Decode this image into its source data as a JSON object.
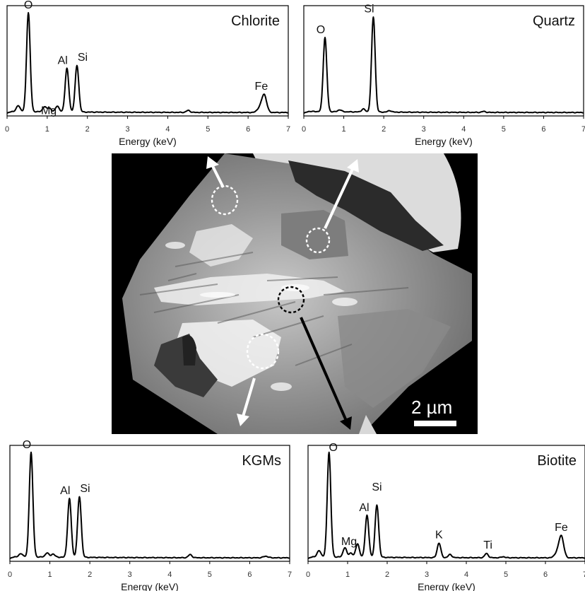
{
  "chart_data": [
    {
      "type": "line",
      "title": "Chlorite",
      "xlabel": "Energy (keV)",
      "ylabel": "",
      "xlim": [
        0,
        7
      ],
      "ylim": [
        0,
        100
      ],
      "x_ticks": [
        "0",
        "1",
        "2",
        "3",
        "4",
        "5",
        "6",
        "7"
      ],
      "peaks": [
        {
          "label": "O",
          "x": 0.53,
          "y": 100
        },
        {
          "label": "Mg",
          "x": 1.25,
          "y": 6
        },
        {
          "label": "Al",
          "x": 1.49,
          "y": 44
        },
        {
          "label": "Si",
          "x": 1.74,
          "y": 47
        },
        {
          "label": "Fe",
          "x": 6.4,
          "y": 18
        }
      ],
      "minor_peaks": [
        {
          "x": 0.28,
          "y": 6
        },
        {
          "x": 0.93,
          "y": 5
        },
        {
          "x": 1.05,
          "y": 4
        },
        {
          "x": 4.51,
          "y": 2
        },
        {
          "x": 6.28,
          "y": 4
        }
      ]
    },
    {
      "type": "line",
      "title": "Quartz",
      "xlabel": "Energy (keV)",
      "ylabel": "",
      "xlim": [
        0,
        7
      ],
      "ylim": [
        0,
        100
      ],
      "x_ticks": [
        "0",
        "1",
        "2",
        "3",
        "4",
        "5",
        "6",
        "7"
      ],
      "peaks": [
        {
          "label": "O",
          "x": 0.53,
          "y": 75
        },
        {
          "label": "Si",
          "x": 1.74,
          "y": 96
        }
      ],
      "minor_peaks": [
        {
          "x": 0.9,
          "y": 2
        },
        {
          "x": 1.49,
          "y": 3
        },
        {
          "x": 2.15,
          "y": 1.5
        },
        {
          "x": 4.5,
          "y": 1
        }
      ]
    },
    {
      "type": "line",
      "title": "KGMs",
      "xlabel": "Energy (keV)",
      "ylabel": "",
      "xlim": [
        0,
        7
      ],
      "ylim": [
        0,
        100
      ],
      "x_ticks": [
        "0",
        "1",
        "2",
        "3",
        "4",
        "5",
        "6",
        "7"
      ],
      "peaks": [
        {
          "label": "O",
          "x": 0.53,
          "y": 100
        },
        {
          "label": "Al",
          "x": 1.49,
          "y": 56
        },
        {
          "label": "Si",
          "x": 1.74,
          "y": 58
        }
      ],
      "minor_peaks": [
        {
          "x": 0.28,
          "y": 3
        },
        {
          "x": 0.93,
          "y": 4
        },
        {
          "x": 1.08,
          "y": 3
        },
        {
          "x": 4.51,
          "y": 3
        },
        {
          "x": 6.4,
          "y": 1.5
        }
      ]
    },
    {
      "type": "line",
      "title": "Biotite",
      "xlabel": "Energy (keV)",
      "ylabel": "",
      "xlim": [
        0,
        7
      ],
      "ylim": [
        0,
        100
      ],
      "x_ticks": [
        "0",
        "1",
        "2",
        "3",
        "4",
        "5",
        "6",
        "7"
      ],
      "peaks": [
        {
          "label": "O",
          "x": 0.53,
          "y": 100
        },
        {
          "label": "Mg",
          "x": 1.25,
          "y": 13
        },
        {
          "label": "Al",
          "x": 1.49,
          "y": 40
        },
        {
          "label": "Si",
          "x": 1.74,
          "y": 50
        },
        {
          "label": "K",
          "x": 3.31,
          "y": 14
        },
        {
          "label": "Ti",
          "x": 4.51,
          "y": 4
        },
        {
          "label": "Fe",
          "x": 6.4,
          "y": 21
        }
      ],
      "minor_peaks": [
        {
          "x": 0.28,
          "y": 6
        },
        {
          "x": 0.93,
          "y": 9
        },
        {
          "x": 1.08,
          "y": 4
        },
        {
          "x": 3.59,
          "y": 3
        },
        {
          "x": 4.93,
          "y": 1
        },
        {
          "x": 6.28,
          "y": 4
        }
      ]
    }
  ],
  "micrograph": {
    "scale_bar_label": "2 µm",
    "regions": [
      "Chlorite",
      "Quartz",
      "KGMs",
      "Biotite"
    ]
  }
}
